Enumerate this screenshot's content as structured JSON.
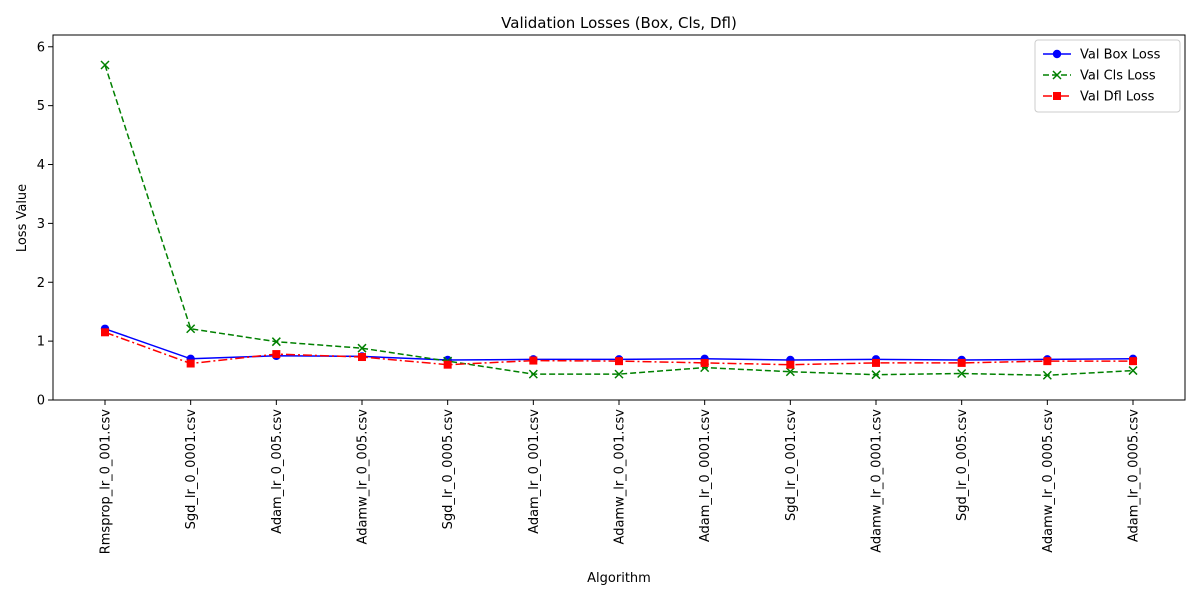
{
  "chart_data": {
    "type": "line",
    "title": "Validation Losses (Box, Cls, Dfl)",
    "xlabel": "Algorithm",
    "ylabel": "Loss Value",
    "ylim": [
      0,
      6.2
    ],
    "yticks": [
      0,
      1,
      2,
      3,
      4,
      5,
      6
    ],
    "grid": false,
    "legend_position": "top-right",
    "categories": [
      "Rmsprop_lr_0_001.csv",
      "Sgd_lr_0_0001.csv",
      "Adam_lr_0_005.csv",
      "Adamw_lr_0_005.csv",
      "Sgd_lr_0_0005.csv",
      "Adam_lr_0_001.csv",
      "Adamw_lr_0_001.csv",
      "Adam_lr_0_0001.csv",
      "Sgd_lr_0_001.csv",
      "Adamw_lr_0_0001.csv",
      "Sgd_lr_0_005.csv",
      "Adamw_lr_0_0005.csv",
      "Adam_lr_0_0005.csv"
    ],
    "series": [
      {
        "name": "Val Box Loss",
        "color": "#0000ff",
        "line_style": "solid",
        "marker": "circle",
        "values": [
          1.21,
          0.7,
          0.75,
          0.74,
          0.68,
          0.69,
          0.69,
          0.7,
          0.68,
          0.69,
          0.68,
          0.69,
          0.7
        ]
      },
      {
        "name": "Val Cls Loss",
        "color": "#008000",
        "line_style": "dashed",
        "marker": "x",
        "values": [
          5.69,
          1.21,
          0.99,
          0.88,
          0.66,
          0.44,
          0.44,
          0.55,
          0.48,
          0.43,
          0.45,
          0.42,
          0.5
        ]
      },
      {
        "name": "Val Dfl Loss",
        "color": "#ff0000",
        "line_style": "dashdot",
        "marker": "square",
        "values": [
          1.15,
          0.62,
          0.78,
          0.73,
          0.6,
          0.67,
          0.66,
          0.63,
          0.6,
          0.63,
          0.63,
          0.66,
          0.66
        ]
      }
    ]
  }
}
